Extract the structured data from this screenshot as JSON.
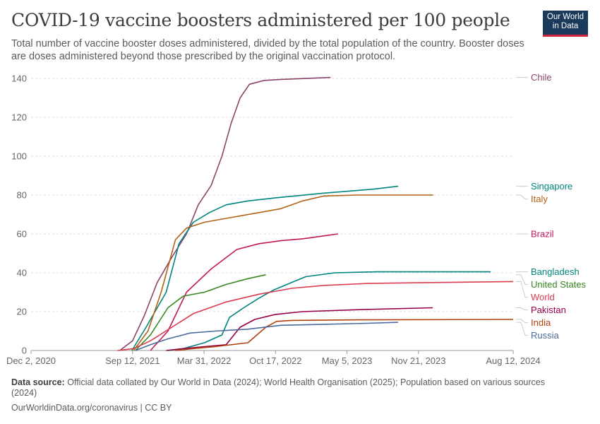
{
  "title": "COVID-19 vaccine boosters administered per 100 people",
  "subtitle": "Total number of vaccine booster doses administered, divided by the total population of the country. Booster doses are doses administered beyond those prescribed by the original vaccination protocol.",
  "logo": {
    "line1": "Our World",
    "line2": "in Data"
  },
  "footer": {
    "source_label": "Data source:",
    "source_text": "Official data collated by Our World in Data (2024); World Health Organisation (2025); Population based on various sources (2024)",
    "url": "OurWorldinData.org/coronavirus | CC BY"
  },
  "chart_data": {
    "type": "line",
    "title": "COVID-19 vaccine boosters administered per 100 people",
    "xlim": [
      "2020-12-02",
      "2024-08-12"
    ],
    "ylim": [
      0,
      140
    ],
    "x_ticks": [
      "2020-12-02",
      "2021-09-12",
      "2022-03-31",
      "2022-10-17",
      "2023-05-05",
      "2023-11-21",
      "2024-08-12"
    ],
    "x_tick_labels": [
      "Dec 2, 2020",
      "Sep 12, 2021",
      "Mar 31, 2022",
      "Oct 17, 2022",
      "May 5, 2023",
      "Nov 21, 2023",
      "Aug 12, 2024"
    ],
    "y_ticks": [
      0,
      20,
      40,
      60,
      80,
      100,
      120,
      140
    ],
    "grid": "horizontal dashed",
    "legend": "right, end-of-line labels",
    "series": [
      {
        "name": "Chile",
        "color": "#8c4569",
        "points": [
          [
            "2021-08-07",
            0
          ],
          [
            "2021-09-12",
            5
          ],
          [
            "2021-10-15",
            18
          ],
          [
            "2021-11-20",
            35
          ],
          [
            "2021-12-31",
            48
          ],
          [
            "2022-02-10",
            60
          ],
          [
            "2022-03-15",
            75
          ],
          [
            "2022-04-20",
            85
          ],
          [
            "2022-05-20",
            100
          ],
          [
            "2022-06-15",
            117
          ],
          [
            "2022-07-10",
            130
          ],
          [
            "2022-08-05",
            137
          ],
          [
            "2022-09-15",
            139
          ],
          [
            "2022-11-01",
            139.5
          ],
          [
            "2023-03-20",
            140.5
          ]
        ]
      },
      {
        "name": "Singapore",
        "color": "#00847e",
        "points": [
          [
            "2021-09-10",
            0
          ],
          [
            "2021-10-20",
            12
          ],
          [
            "2021-12-15",
            30
          ],
          [
            "2022-01-20",
            55
          ],
          [
            "2022-03-01",
            66
          ],
          [
            "2022-04-15",
            71
          ],
          [
            "2022-06-01",
            75
          ],
          [
            "2022-08-01",
            77
          ],
          [
            "2022-10-15",
            78.5
          ],
          [
            "2023-03-01",
            81
          ],
          [
            "2023-07-15",
            83
          ],
          [
            "2023-09-25",
            84.5
          ]
        ]
      },
      {
        "name": "Italy",
        "color": "#b16214",
        "points": [
          [
            "2021-09-15",
            0
          ],
          [
            "2021-10-25",
            10
          ],
          [
            "2021-12-01",
            30
          ],
          [
            "2022-01-10",
            57
          ],
          [
            "2022-02-10",
            63
          ],
          [
            "2022-04-01",
            66
          ],
          [
            "2022-06-01",
            68
          ],
          [
            "2022-09-01",
            71
          ],
          [
            "2022-11-01",
            73
          ],
          [
            "2023-01-01",
            77
          ],
          [
            "2023-03-01",
            79.5
          ],
          [
            "2023-06-01",
            80
          ],
          [
            "2024-01-01",
            80
          ]
        ]
      },
      {
        "name": "Brazil",
        "color": "#c2185b",
        "points": [
          [
            "2021-11-01",
            0
          ],
          [
            "2021-12-20",
            10
          ],
          [
            "2022-02-10",
            30
          ],
          [
            "2022-04-20",
            42
          ],
          [
            "2022-07-01",
            52
          ],
          [
            "2022-09-01",
            55
          ],
          [
            "2022-11-01",
            56.5
          ],
          [
            "2023-01-01",
            57.5
          ],
          [
            "2023-03-01",
            59
          ],
          [
            "2023-04-10",
            60
          ]
        ]
      },
      {
        "name": "Bangladesh",
        "color": "#00847e",
        "points": [
          [
            "2021-12-20",
            0
          ],
          [
            "2022-02-01",
            1
          ],
          [
            "2022-04-01",
            4
          ],
          [
            "2022-05-20",
            8
          ],
          [
            "2022-06-10",
            17
          ],
          [
            "2022-07-20",
            22
          ],
          [
            "2022-09-01",
            27
          ],
          [
            "2022-10-10",
            31
          ],
          [
            "2022-12-01",
            35
          ],
          [
            "2023-01-10",
            38
          ],
          [
            "2023-04-01",
            40
          ],
          [
            "2023-08-01",
            40.5
          ],
          [
            "2024-06-10",
            40.5
          ]
        ]
      },
      {
        "name": "United States",
        "color": "#38861f",
        "points": [
          [
            "2021-09-20",
            0
          ],
          [
            "2021-11-01",
            8
          ],
          [
            "2021-12-20",
            22
          ],
          [
            "2022-02-01",
            28
          ],
          [
            "2022-04-01",
            30
          ],
          [
            "2022-06-01",
            34
          ],
          [
            "2022-08-01",
            37
          ],
          [
            "2022-09-20",
            39
          ]
        ]
      },
      {
        "name": "World",
        "color": "#d93b4f",
        "points": [
          [
            "2021-08-01",
            0
          ],
          [
            "2021-09-15",
            1
          ],
          [
            "2021-11-01",
            5
          ],
          [
            "2021-12-31",
            12
          ],
          [
            "2022-03-01",
            19
          ],
          [
            "2022-06-01",
            25
          ],
          [
            "2022-09-01",
            29
          ],
          [
            "2022-12-01",
            32
          ],
          [
            "2023-03-01",
            33.5
          ],
          [
            "2023-07-01",
            34.5
          ],
          [
            "2024-01-01",
            35
          ],
          [
            "2024-08-12",
            35.5
          ]
        ]
      },
      {
        "name": "Pakistan",
        "color": "#970046",
        "points": [
          [
            "2021-12-15",
            0
          ],
          [
            "2022-02-01",
            1
          ],
          [
            "2022-04-01",
            2
          ],
          [
            "2022-06-01",
            3
          ],
          [
            "2022-07-10",
            12
          ],
          [
            "2022-08-20",
            16
          ],
          [
            "2022-10-15",
            18.5
          ],
          [
            "2022-12-31",
            20
          ],
          [
            "2023-06-01",
            21
          ],
          [
            "2023-12-31",
            22
          ]
        ]
      },
      {
        "name": "India",
        "color": "#b0420f",
        "points": [
          [
            "2022-01-10",
            0
          ],
          [
            "2022-03-01",
            1
          ],
          [
            "2022-05-01",
            2
          ],
          [
            "2022-08-01",
            4
          ],
          [
            "2022-09-20",
            12
          ],
          [
            "2022-10-20",
            15
          ],
          [
            "2022-12-01",
            15.5
          ],
          [
            "2023-06-01",
            15.8
          ],
          [
            "2024-08-12",
            16
          ]
        ]
      },
      {
        "name": "Russia",
        "color": "#4c6a9c",
        "points": [
          [
            "2021-09-20",
            0
          ],
          [
            "2021-11-01",
            3
          ],
          [
            "2021-12-20",
            6
          ],
          [
            "2022-02-20",
            9
          ],
          [
            "2022-05-01",
            10
          ],
          [
            "2022-08-01",
            11
          ],
          [
            "2022-11-01",
            13
          ],
          [
            "2023-03-01",
            13.5
          ],
          [
            "2023-07-01",
            14
          ],
          [
            "2023-09-25",
            14.5
          ]
        ]
      }
    ]
  }
}
